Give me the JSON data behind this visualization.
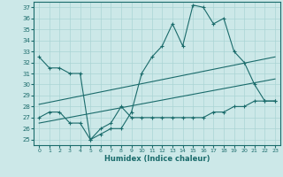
{
  "xlabel": "Humidex (Indice chaleur)",
  "bg_color": "#cce8e8",
  "line_color": "#1a6b6b",
  "grid_color": "#aad4d4",
  "xlim": [
    -0.5,
    23.5
  ],
  "ylim": [
    24.5,
    37.5
  ],
  "yticks": [
    25,
    26,
    27,
    28,
    29,
    30,
    31,
    32,
    33,
    34,
    35,
    36,
    37
  ],
  "xticks": [
    0,
    1,
    2,
    3,
    4,
    5,
    6,
    7,
    8,
    9,
    10,
    11,
    12,
    13,
    14,
    15,
    16,
    17,
    18,
    19,
    20,
    21,
    22,
    23
  ],
  "line1_x": [
    0,
    1,
    2,
    3,
    4,
    5,
    6,
    7,
    8,
    9,
    10,
    11,
    12,
    13,
    14,
    15,
    16,
    17,
    18,
    19,
    20,
    21,
    22,
    23
  ],
  "line1_y": [
    32.5,
    31.5,
    31.5,
    31.0,
    31.0,
    25.0,
    25.5,
    26.0,
    26.0,
    27.5,
    31.0,
    32.5,
    33.5,
    35.5,
    33.5,
    37.2,
    37.0,
    35.5,
    36.0,
    33.0,
    32.0,
    30.0,
    28.5,
    28.5
  ],
  "line2_x": [
    0,
    1,
    2,
    3,
    4,
    5,
    6,
    7,
    8,
    9,
    10,
    11,
    12,
    13,
    14,
    15,
    16,
    17,
    18,
    19,
    20,
    21,
    22,
    23
  ],
  "line2_y": [
    27.0,
    27.5,
    27.5,
    26.5,
    26.5,
    25.0,
    26.0,
    26.5,
    28.0,
    27.0,
    27.0,
    27.0,
    27.0,
    27.0,
    27.0,
    27.0,
    27.0,
    27.5,
    27.5,
    28.0,
    28.0,
    28.5,
    28.5,
    28.5
  ],
  "trend1_x": [
    0,
    23
  ],
  "trend1_y": [
    28.2,
    32.5
  ],
  "trend2_x": [
    0,
    23
  ],
  "trend2_y": [
    26.5,
    30.5
  ]
}
